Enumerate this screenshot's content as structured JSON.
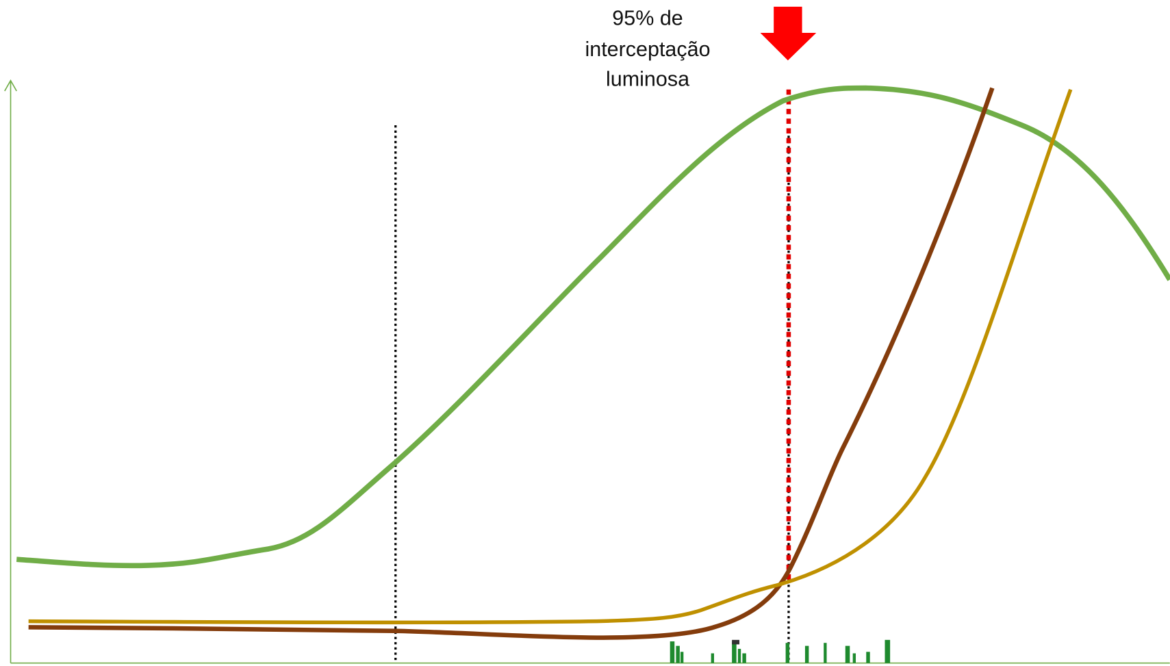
{
  "annotation": {
    "lines": [
      "95% de",
      "interceptação",
      "luminosa"
    ]
  }
}
